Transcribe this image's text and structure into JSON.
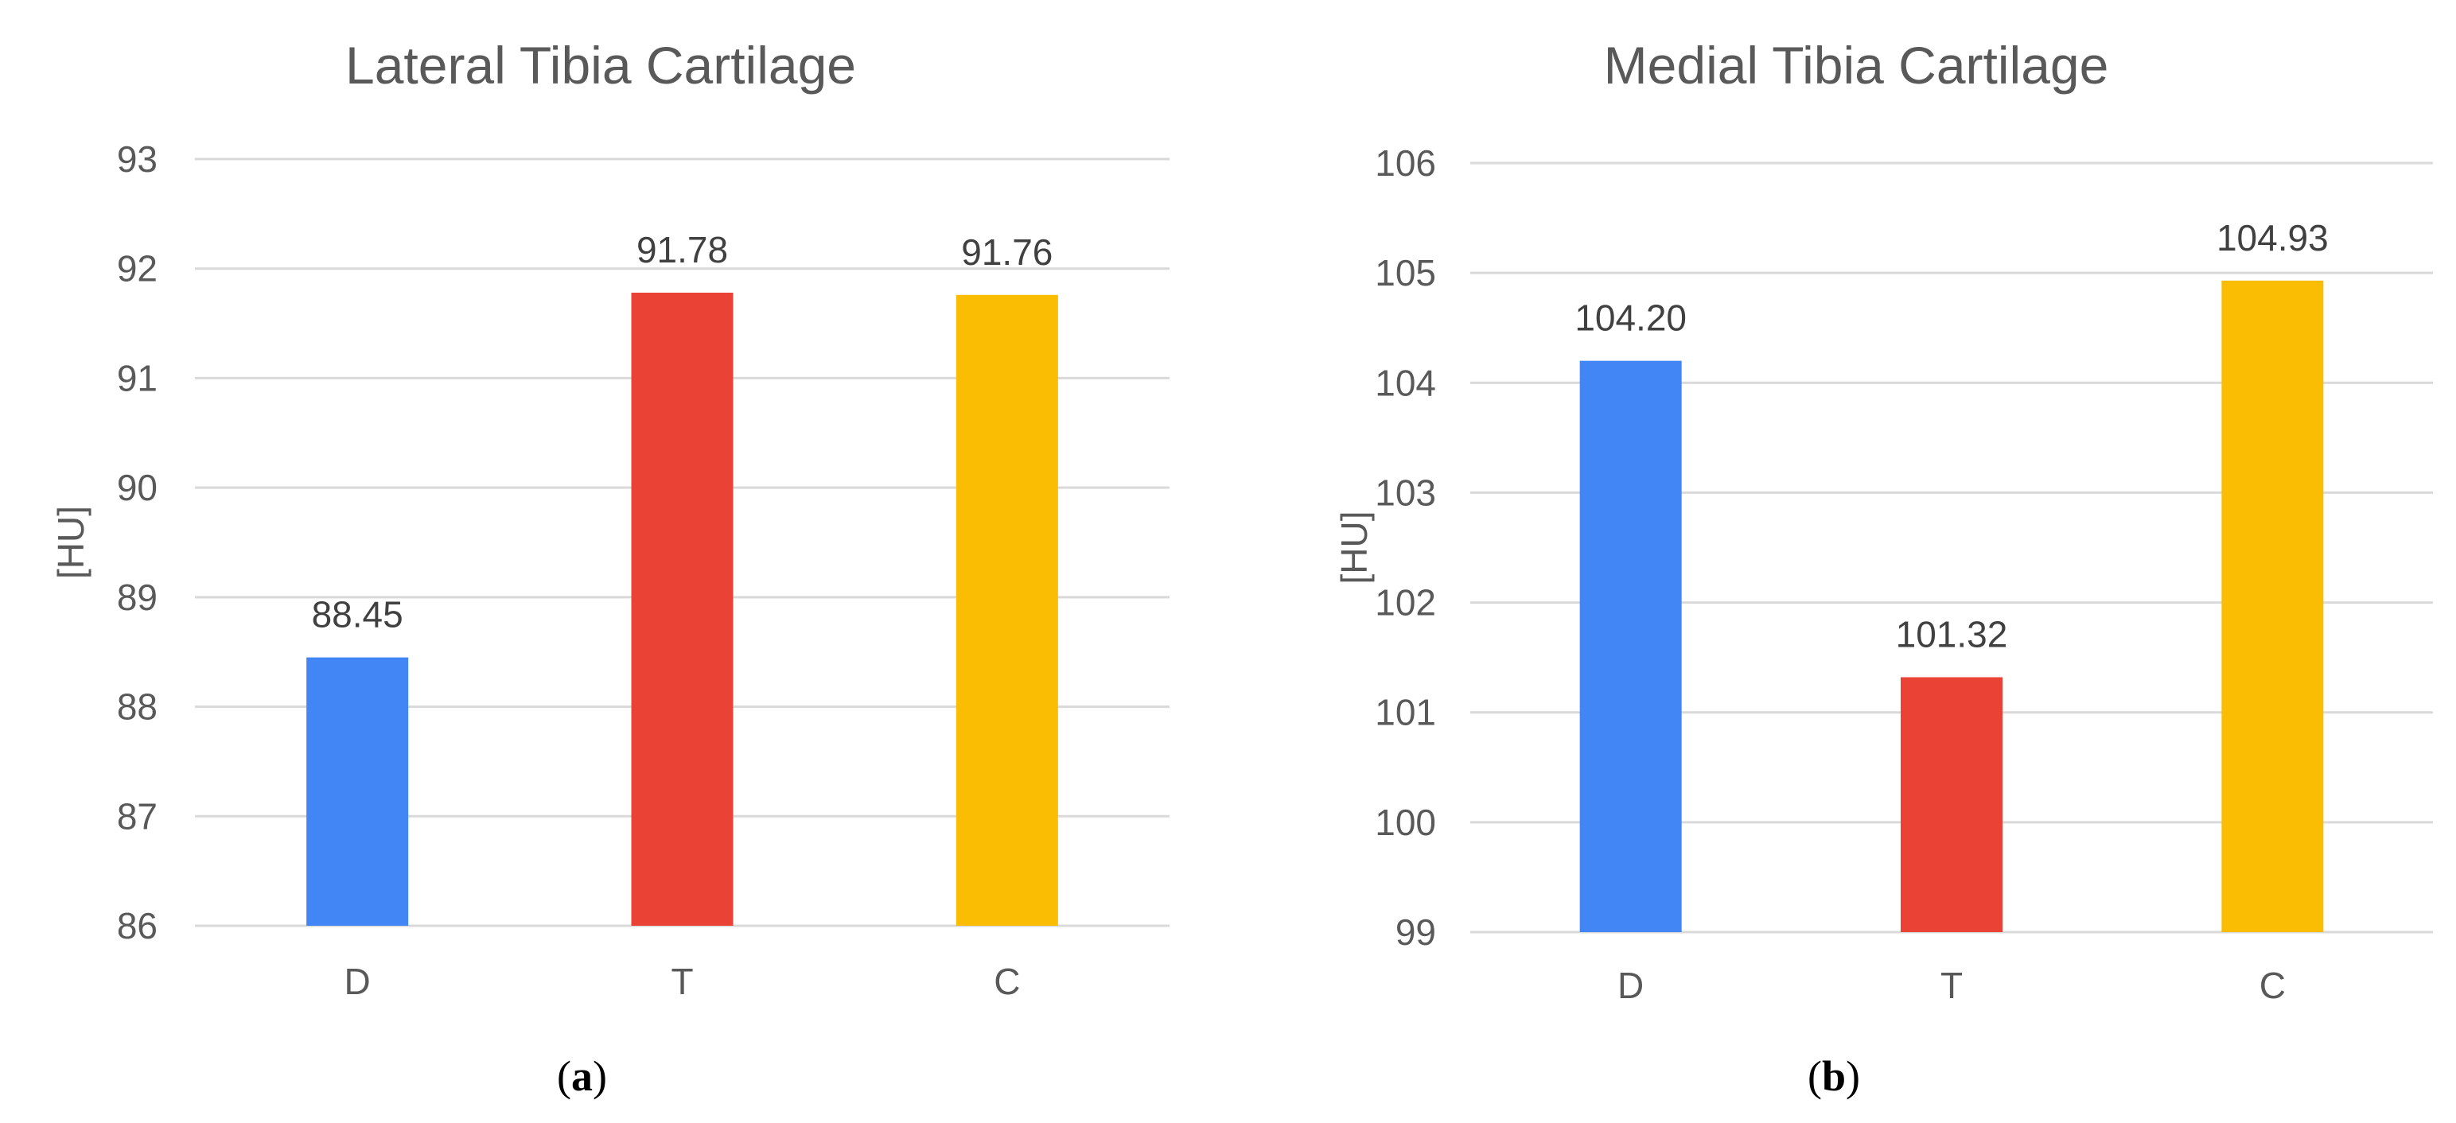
{
  "chart_data": [
    {
      "type": "bar",
      "title": "Lateral Tibia Cartilage",
      "ylabel": "[HU]",
      "categories": [
        "D",
        "T",
        "C"
      ],
      "values": [
        88.45,
        91.78,
        91.76
      ],
      "value_labels": [
        "88.45",
        "91.78",
        "91.76"
      ],
      "colors": [
        "#4285f4",
        "#ea4335",
        "#fbbc04"
      ],
      "ylim": [
        86,
        93
      ],
      "yticks": [
        86,
        87,
        88,
        89,
        90,
        91,
        92,
        93
      ],
      "grid": true,
      "legend": "none",
      "panel_label": "a"
    },
    {
      "type": "bar",
      "title": "Medial Tibia Cartilage",
      "ylabel": "[HU]",
      "categories": [
        "D",
        "T",
        "C"
      ],
      "values": [
        104.2,
        101.32,
        104.93
      ],
      "value_labels": [
        "104.20",
        "101.32",
        "104.93"
      ],
      "colors": [
        "#4285f4",
        "#ea4335",
        "#fbbc04"
      ],
      "ylim": [
        99,
        106
      ],
      "yticks": [
        99,
        100,
        101,
        102,
        103,
        104,
        105,
        106
      ],
      "grid": true,
      "legend": "none",
      "panel_label": "b"
    }
  ]
}
